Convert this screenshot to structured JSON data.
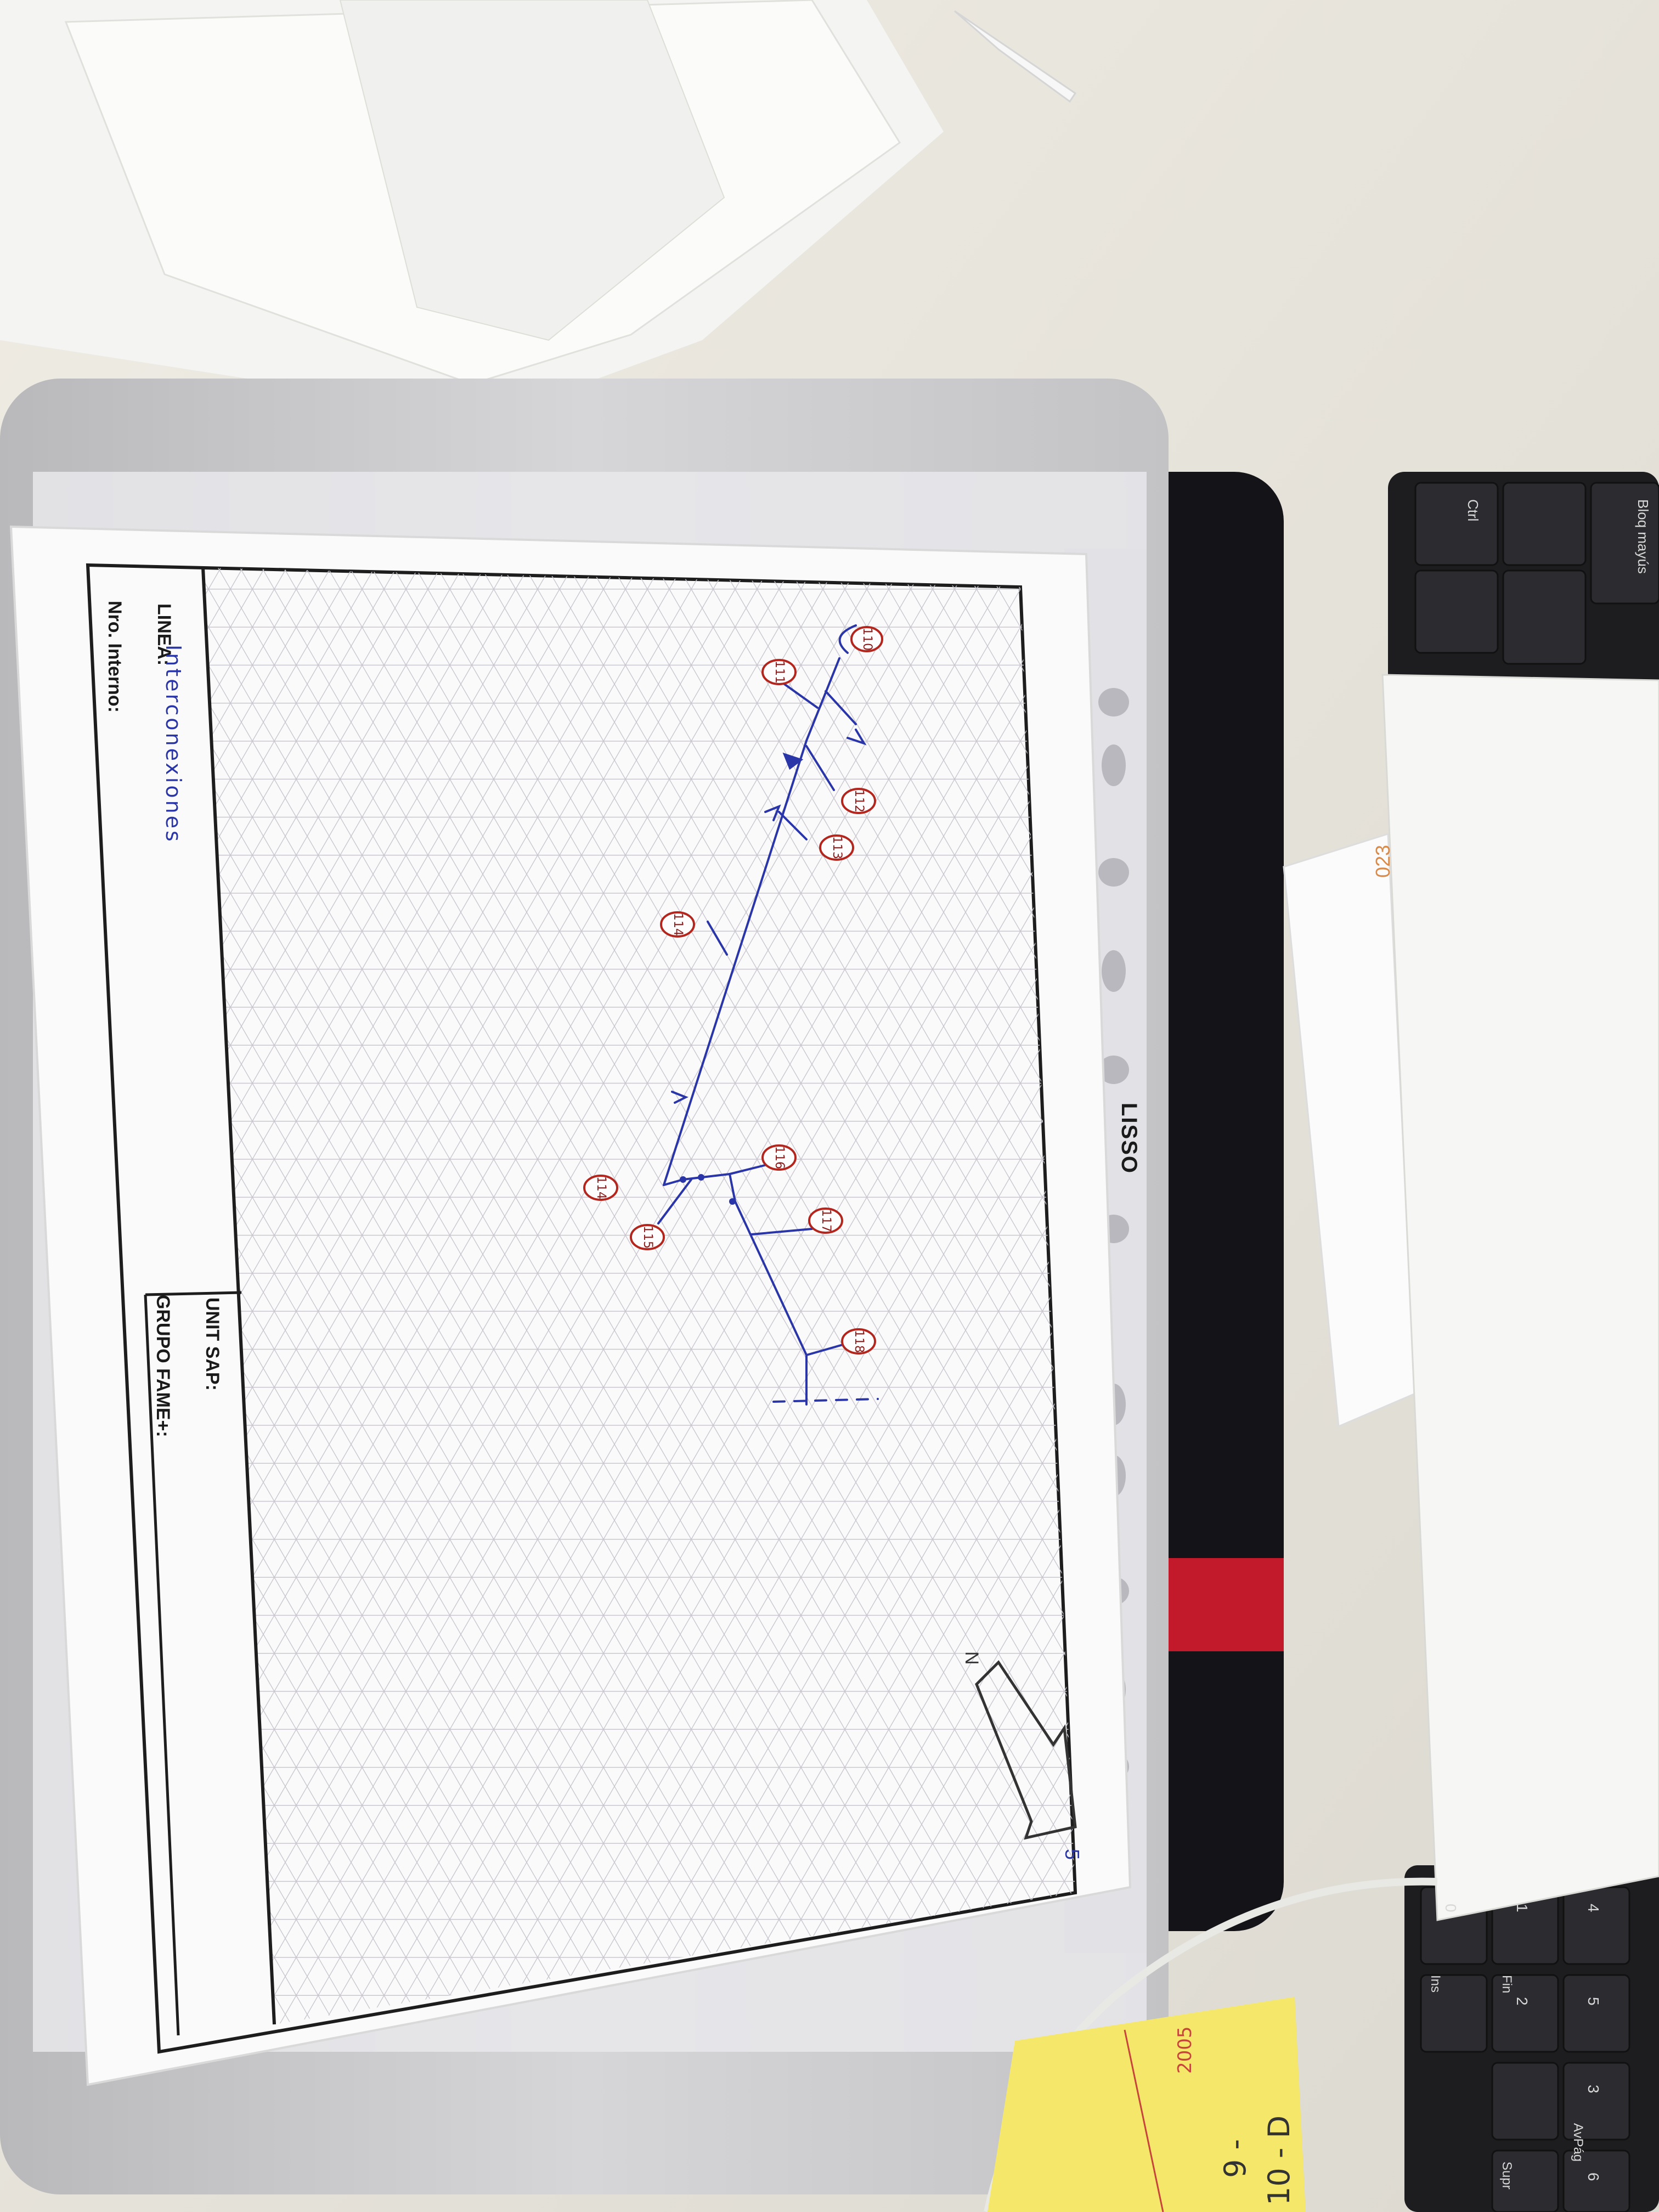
{
  "sheet": {
    "line_label": "LINEA:",
    "line_value": "Interconexiones",
    "internal_label": "Nro. Interno:",
    "unit_label": "UNIT SAP:",
    "group_label": "GRUPO FAME+:",
    "binder_brand": "LISSO",
    "north_letter": "N",
    "sheet_number": "5"
  },
  "tags": [
    "110",
    "111",
    "112",
    "113",
    "114",
    "114",
    "115",
    "116",
    "117",
    "118"
  ],
  "keyboard": {
    "keys": [
      "Ctrl",
      "Bloq mayús",
      "Ins",
      "Fin",
      "AvPág",
      "Supr",
      "0",
      "1",
      "2",
      "3",
      "4",
      "5",
      "6"
    ]
  },
  "envelope_text": "023",
  "sticky_note": {
    "line1": "10 - D",
    "line2": "9 -",
    "line3": "2005"
  },
  "colors": {
    "ink_blue": "#2a36a8",
    "tag_red": "#b3261e",
    "sticky_yellow": "#f4e76a"
  }
}
